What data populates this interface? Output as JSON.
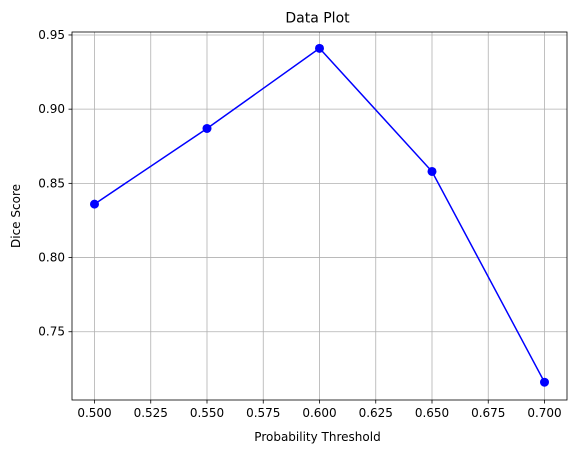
{
  "chart_data": {
    "type": "line",
    "title": "Data Plot",
    "xlabel": "Probability Threshold",
    "ylabel": "Dice Score",
    "x": [
      0.5,
      0.55,
      0.6,
      0.65,
      0.7
    ],
    "series": [
      {
        "values": [
          0.836,
          0.887,
          0.941,
          0.858,
          0.716
        ]
      }
    ],
    "xlim": [
      0.49,
      0.71
    ],
    "ylim": [
      0.704,
      0.952
    ],
    "xticks": [
      "0.500",
      "0.525",
      "0.550",
      "0.575",
      "0.600",
      "0.625",
      "0.650",
      "0.675",
      "0.700"
    ],
    "yticks": [
      "0.75",
      "0.80",
      "0.85",
      "0.90",
      "0.95"
    ],
    "grid": true,
    "line_color": "#0000ff",
    "marker": "circle"
  }
}
